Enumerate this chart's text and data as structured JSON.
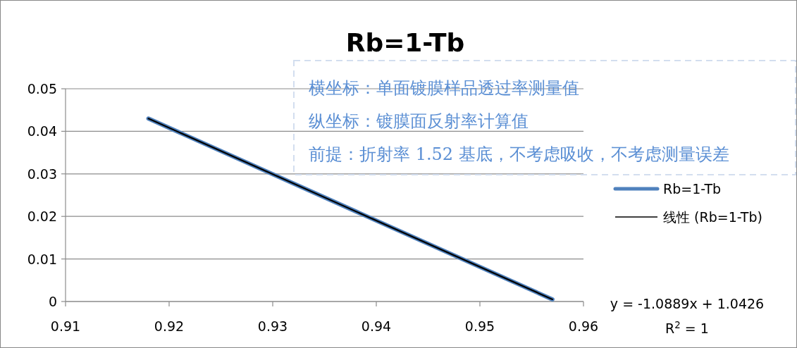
{
  "chart_data": {
    "type": "line",
    "title": "Rb=1-Tb",
    "annotations": [
      "横坐标：单面镀膜样品透过率测量值",
      "纵坐标：镀膜面反射率计算值",
      "前提：折射率 1.52 基底，不考虑吸收，不考虑测量误差",
      "y = -1.0889x + 1.0426",
      "R$^{2}$ = 1"
    ],
    "x": [
      0.918,
      0.957
    ],
    "series": [
      {
        "name": "Rb=1-Tb",
        "color": "#4f81bd",
        "values": [
          0.043,
          0.0005
        ]
      },
      {
        "name": "线性 (Rb=1-Tb)",
        "color": "#000000",
        "type": "line",
        "x": [
          0.918,
          0.957
        ],
        "values": [
          0.043,
          0.0005
        ]
      }
    ],
    "xlim": [
      0.91,
      0.96
    ],
    "xticks": [
      0.91,
      0.92,
      0.93,
      0.94,
      0.95,
      0.96
    ],
    "ylim": [
      0,
      0.05
    ],
    "yticks": [
      0,
      0.01,
      0.02,
      0.03,
      0.04,
      0.05
    ],
    "grid": "y",
    "legend": "right",
    "marker": "none"
  }
}
